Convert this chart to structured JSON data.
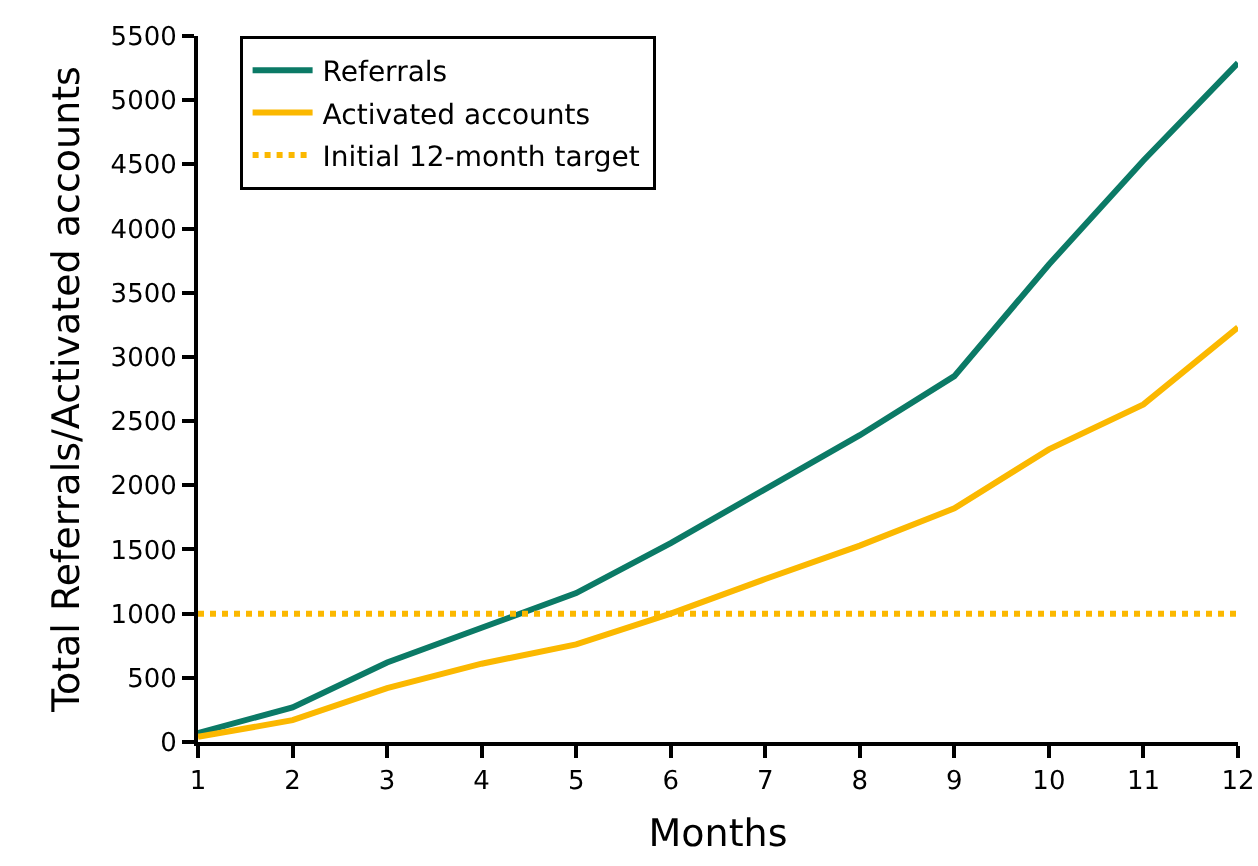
{
  "chart_data": {
    "type": "line",
    "xlabel": "Months",
    "ylabel": "Total Referrals/Activated accounts",
    "x": [
      1,
      2,
      3,
      4,
      5,
      6,
      7,
      8,
      9,
      10,
      11,
      12
    ],
    "series": [
      {
        "name": "Referrals",
        "color": "#0b7a66",
        "values": [
          70,
          270,
          620,
          890,
          1160,
          1550,
          1970,
          2390,
          2850,
          3720,
          4530,
          5290
        ]
      },
      {
        "name": "Activated accounts",
        "color": "#fbb800",
        "values": [
          40,
          170,
          420,
          610,
          760,
          1000,
          1270,
          1530,
          1820,
          2280,
          2630,
          3230
        ]
      }
    ],
    "ref_lines": [
      {
        "axis": "y",
        "value": 1000,
        "label": "Initial 12-month target",
        "color": "#fbb800",
        "line_style": "dotted"
      }
    ],
    "xlim": [
      1,
      12
    ],
    "xticks": [
      1,
      2,
      3,
      4,
      5,
      6,
      7,
      8,
      9,
      10,
      11,
      12
    ],
    "ylim": [
      0,
      5500
    ],
    "yticks": [
      0,
      500,
      1000,
      1500,
      2000,
      2500,
      3000,
      3500,
      4000,
      4500,
      5000,
      5500
    ],
    "grid": false,
    "legend": "top left",
    "line_style": "solid",
    "marker": "none"
  }
}
